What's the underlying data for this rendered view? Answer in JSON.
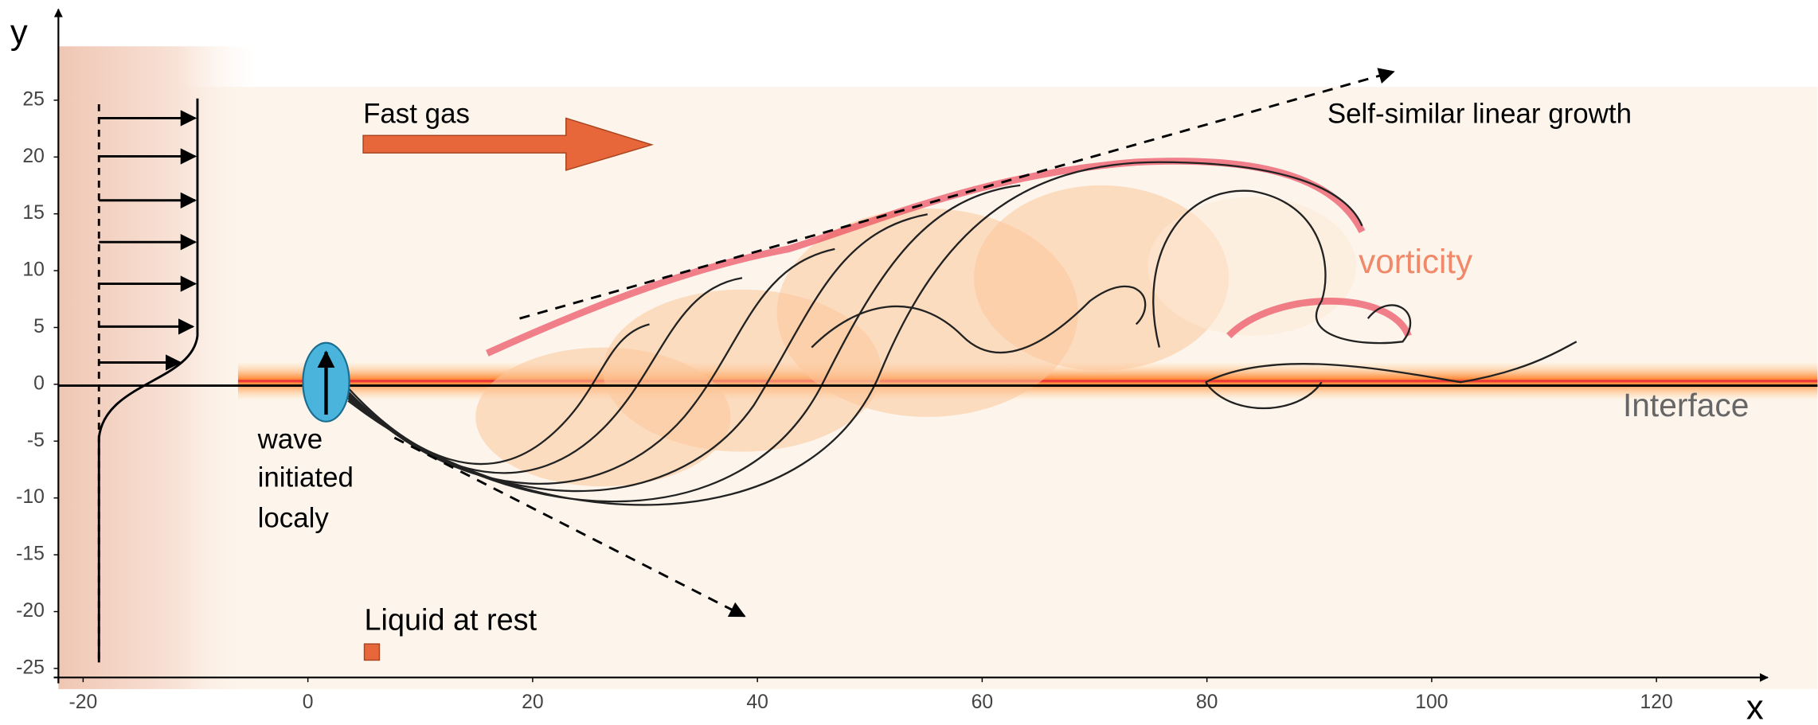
{
  "axes": {
    "x_label": "x",
    "y_label": "y",
    "xlim": [
      -22.2,
      129.9
    ],
    "ylim": [
      -25.8,
      33
    ],
    "xticks": [
      -20,
      0,
      20,
      40,
      60,
      80,
      100,
      120
    ],
    "yticks": [
      25,
      20,
      15,
      10,
      5,
      0,
      -5,
      -10,
      -15,
      -20,
      -25
    ]
  },
  "annotations": {
    "fast_gas": "Fast gas",
    "growth": "Self-similar linear growth",
    "vorticity": "vorticity",
    "interface": "Interface",
    "wave": [
      "wave",
      "initiated",
      "localy"
    ],
    "liquid": "Liquid at rest"
  }
}
